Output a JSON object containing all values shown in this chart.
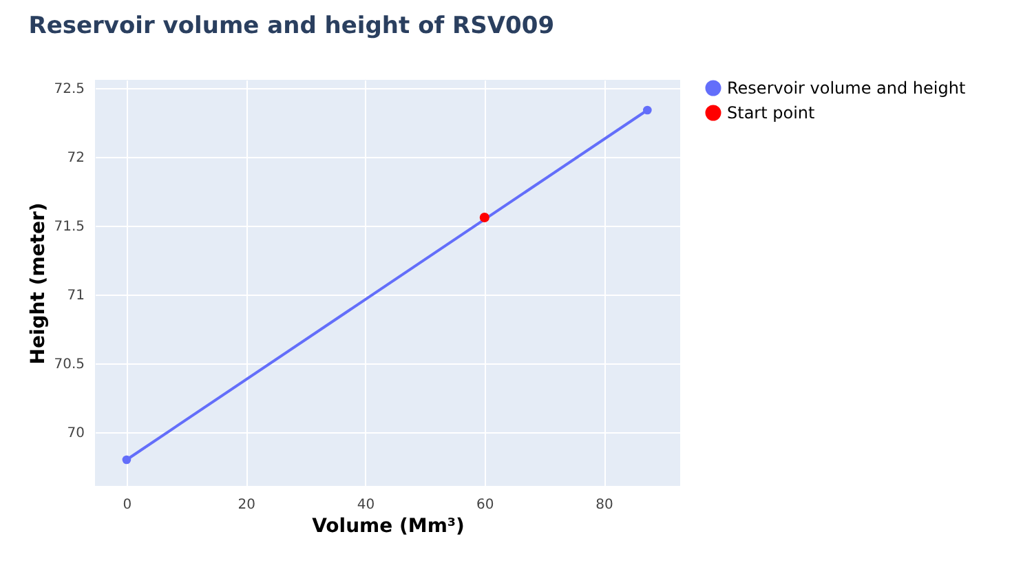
{
  "chart_data": {
    "type": "line",
    "title": "Reservoir volume and height of RSV009",
    "xlabel": "Volume (Mm³)",
    "ylabel": "Height (meter)",
    "xlim": [
      -5.3,
      92.8
    ],
    "xticks": [
      0,
      20,
      40,
      60,
      80
    ],
    "ylim": [
      69.61,
      72.56
    ],
    "yticks": [
      70,
      70.5,
      71,
      71.5,
      72,
      72.5
    ],
    "grid": true,
    "legend": "top right",
    "marker": "circle",
    "series": [
      {
        "name": "Reservoir volume and height",
        "type": "line",
        "color": "#636efa",
        "x": [
          0,
          87.3
        ],
        "values": [
          69.8,
          72.34
        ]
      },
      {
        "name": "Start point",
        "type": "scatter",
        "color": "#ff0000",
        "x": [
          60
        ],
        "values": [
          71.56
        ]
      }
    ]
  }
}
